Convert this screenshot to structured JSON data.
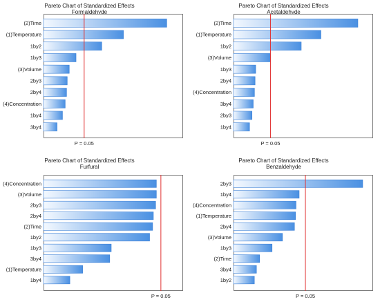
{
  "chart_data": [
    {
      "type": "bar",
      "orientation": "horizontal",
      "title": "Pareto Chart of Standardized Effects",
      "subtitle": "Formaldehyde",
      "categories": [
        "(2)Time",
        "(1)Temperature",
        "1by2",
        "1by3",
        "(3)Volume",
        "2by3",
        "2by4",
        "(4)Concentration",
        "1by4",
        "3by4"
      ],
      "values": [
        9.1,
        5.9,
        4.3,
        2.4,
        1.9,
        1.75,
        1.7,
        1.6,
        1.4,
        1.0
      ],
      "reference_line": {
        "value": 3.0,
        "label": "P = 0.05"
      },
      "xlim": [
        0,
        10
      ],
      "grid": false,
      "bar_color": "#4a90e2"
    },
    {
      "type": "bar",
      "orientation": "horizontal",
      "title": "Pareto Chart of Standardized Effects",
      "subtitle": "Acetaldehyde",
      "categories": [
        "(2)Time",
        "(1)Temperature",
        "1by2",
        "(3)Volume",
        "1by3",
        "2by4",
        "(4)Concentration",
        "3by4",
        "2by3",
        "1by4"
      ],
      "values": [
        10.1,
        7.1,
        5.5,
        3.0,
        1.8,
        1.75,
        1.7,
        1.6,
        1.5,
        1.3
      ],
      "reference_line": {
        "value": 3.0,
        "label": "P = 0.05"
      },
      "xlim": [
        0,
        11
      ],
      "grid": false,
      "bar_color": "#4a90e2"
    },
    {
      "type": "bar",
      "orientation": "horizontal",
      "title": "Pareto Chart of Standardized Effects",
      "subtitle": "Furfural",
      "categories": [
        "(4)Concentration",
        "(3)Volume",
        "2by3",
        "2by4",
        "(2)Time",
        "1by2",
        "1by3",
        "3by4",
        "(1)Temperature",
        "1by4"
      ],
      "values": [
        7.5,
        7.5,
        7.45,
        7.3,
        7.25,
        7.05,
        4.5,
        4.4,
        2.6,
        1.75
      ],
      "reference_line": {
        "value": 7.8,
        "label": "P = 0.05"
      },
      "xlim": [
        0,
        9
      ],
      "grid": false,
      "bar_color": "#4a90e2"
    },
    {
      "type": "bar",
      "orientation": "horizontal",
      "title": "Pareto Chart of Standardized Effects",
      "subtitle": "Benzaldehyde",
      "categories": [
        "2by3",
        "1by4",
        "(4)Concentration",
        "(1)Temperature",
        "2by4",
        "(3)Volume",
        "1by3",
        "(2)Time",
        "3by4",
        "1by2"
      ],
      "values": [
        12.4,
        6.3,
        6.0,
        5.95,
        5.85,
        4.7,
        3.7,
        2.5,
        2.2,
        2.0
      ],
      "reference_line": {
        "value": 6.9,
        "label": "P = 0.05"
      },
      "xlim": [
        0,
        13
      ],
      "grid": false,
      "bar_color": "#4a90e2"
    }
  ]
}
